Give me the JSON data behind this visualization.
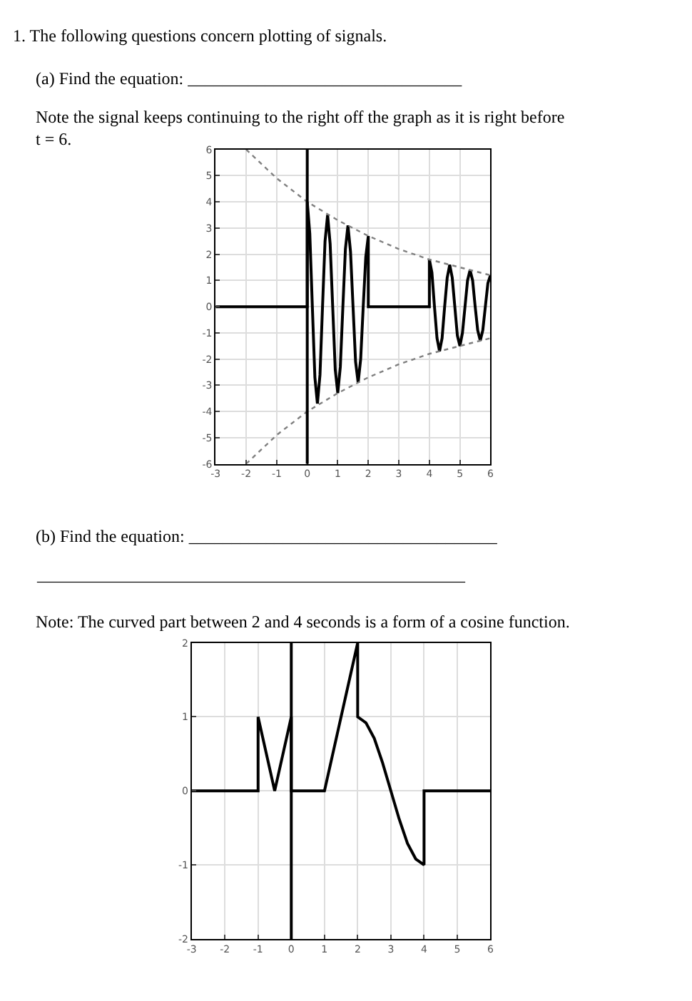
{
  "chart_data": [
    {
      "type": "line",
      "title": "1. The following questions concern plotting of signals.",
      "annotations": [
        "(a) Find the equation: ________________________________",
        "Note the signal keeps continuing to the right off the graph as it is right before t = 6."
      ],
      "series": [
        {
          "color": "#000000",
          "line_style": "solid",
          "x": [
            -3,
            0,
            0,
            0.083,
            0.167,
            0.25,
            0.333,
            0.417,
            0.5,
            0.583,
            0.667,
            0.75,
            0.833,
            0.917,
            1,
            1.083,
            1.167,
            1.25,
            1.333,
            1.417,
            1.5,
            1.583,
            1.667,
            1.75,
            1.833,
            1.917,
            2,
            2,
            4,
            4,
            4.083,
            4.167,
            4.25,
            4.333,
            4.417,
            4.5,
            4.583,
            4.667,
            4.75,
            4.833,
            4.917,
            5,
            5.083,
            5.167,
            5.25,
            5.333,
            5.417,
            5.5,
            5.583,
            5.667,
            5.75,
            5.833,
            5.917,
            6
          ],
          "values": [
            0,
            0,
            4.0,
            2.8,
            0,
            -2.7,
            -3.7,
            -2.6,
            0,
            2.5,
            3.5,
            2.4,
            0,
            -2.4,
            -3.3,
            -2.3,
            0,
            2.2,
            3.1,
            2.1,
            0,
            -2.1,
            -2.9,
            -2.0,
            0,
            1.9,
            2.7,
            0,
            0,
            1.8,
            1.3,
            0,
            -1.2,
            -1.7,
            -1.2,
            0,
            1.1,
            1.6,
            1.1,
            0,
            -1.1,
            -1.5,
            -1.0,
            0,
            1.0,
            1.4,
            1.0,
            0,
            -0.9,
            -1.3,
            -0.9,
            0,
            0.9,
            1.2
          ]
        },
        {
          "color": "#808080",
          "line_style": "dotted",
          "x": [
            -2,
            -1,
            0,
            1,
            2,
            3,
            4,
            5,
            6
          ],
          "values": [
            6.0,
            4.9,
            4.0,
            3.3,
            2.7,
            2.2,
            1.8,
            1.5,
            1.2
          ]
        },
        {
          "color": "#808080",
          "line_style": "dotted",
          "x": [
            -2,
            -1,
            0,
            1,
            2,
            3,
            4,
            5,
            6
          ],
          "values": [
            -6.0,
            -4.9,
            -4.0,
            -3.3,
            -2.7,
            -2.2,
            -1.8,
            -1.5,
            -1.2
          ]
        }
      ],
      "xlim": [
        -3,
        6
      ],
      "ylim": [
        -6,
        6
      ],
      "xticks": [
        -3,
        -2,
        -1,
        0,
        1,
        2,
        3,
        4,
        5,
        6
      ],
      "yticks": [
        -6,
        -5,
        -4,
        -3,
        -2,
        -1,
        0,
        1,
        2,
        3,
        4,
        5,
        6
      ],
      "grid": true,
      "ref_lines": [
        {
          "axis": "x",
          "value": 0,
          "color": "#000000"
        }
      ]
    },
    {
      "type": "line",
      "title": "(b) Find the equation: ____________________________________",
      "annotations": [
        "__________________________________________________",
        "Note: The curved part between 2 and 4 seconds is a form of a cosine function."
      ],
      "series": [
        {
          "color": "#000000",
          "line_style": "solid",
          "x": [
            -3,
            -1,
            -1,
            -0.5,
            0,
            0,
            1,
            2,
            2,
            2.25,
            2.5,
            2.75,
            3,
            3.25,
            3.5,
            3.75,
            4,
            4,
            6
          ],
          "values": [
            0,
            0,
            1,
            0,
            1,
            0,
            0,
            2,
            1,
            0.92,
            0.71,
            0.38,
            0,
            -0.38,
            -0.71,
            -0.92,
            -1,
            0,
            0
          ]
        }
      ],
      "xlim": [
        -3,
        6
      ],
      "ylim": [
        -2,
        2
      ],
      "xticks": [
        -3,
        -2,
        -1,
        0,
        1,
        2,
        3,
        4,
        5,
        6
      ],
      "yticks": [
        -2,
        -1,
        0,
        1,
        2
      ],
      "grid": true,
      "ref_lines": [
        {
          "axis": "x",
          "value": 0,
          "color": "#000000"
        }
      ]
    }
  ]
}
